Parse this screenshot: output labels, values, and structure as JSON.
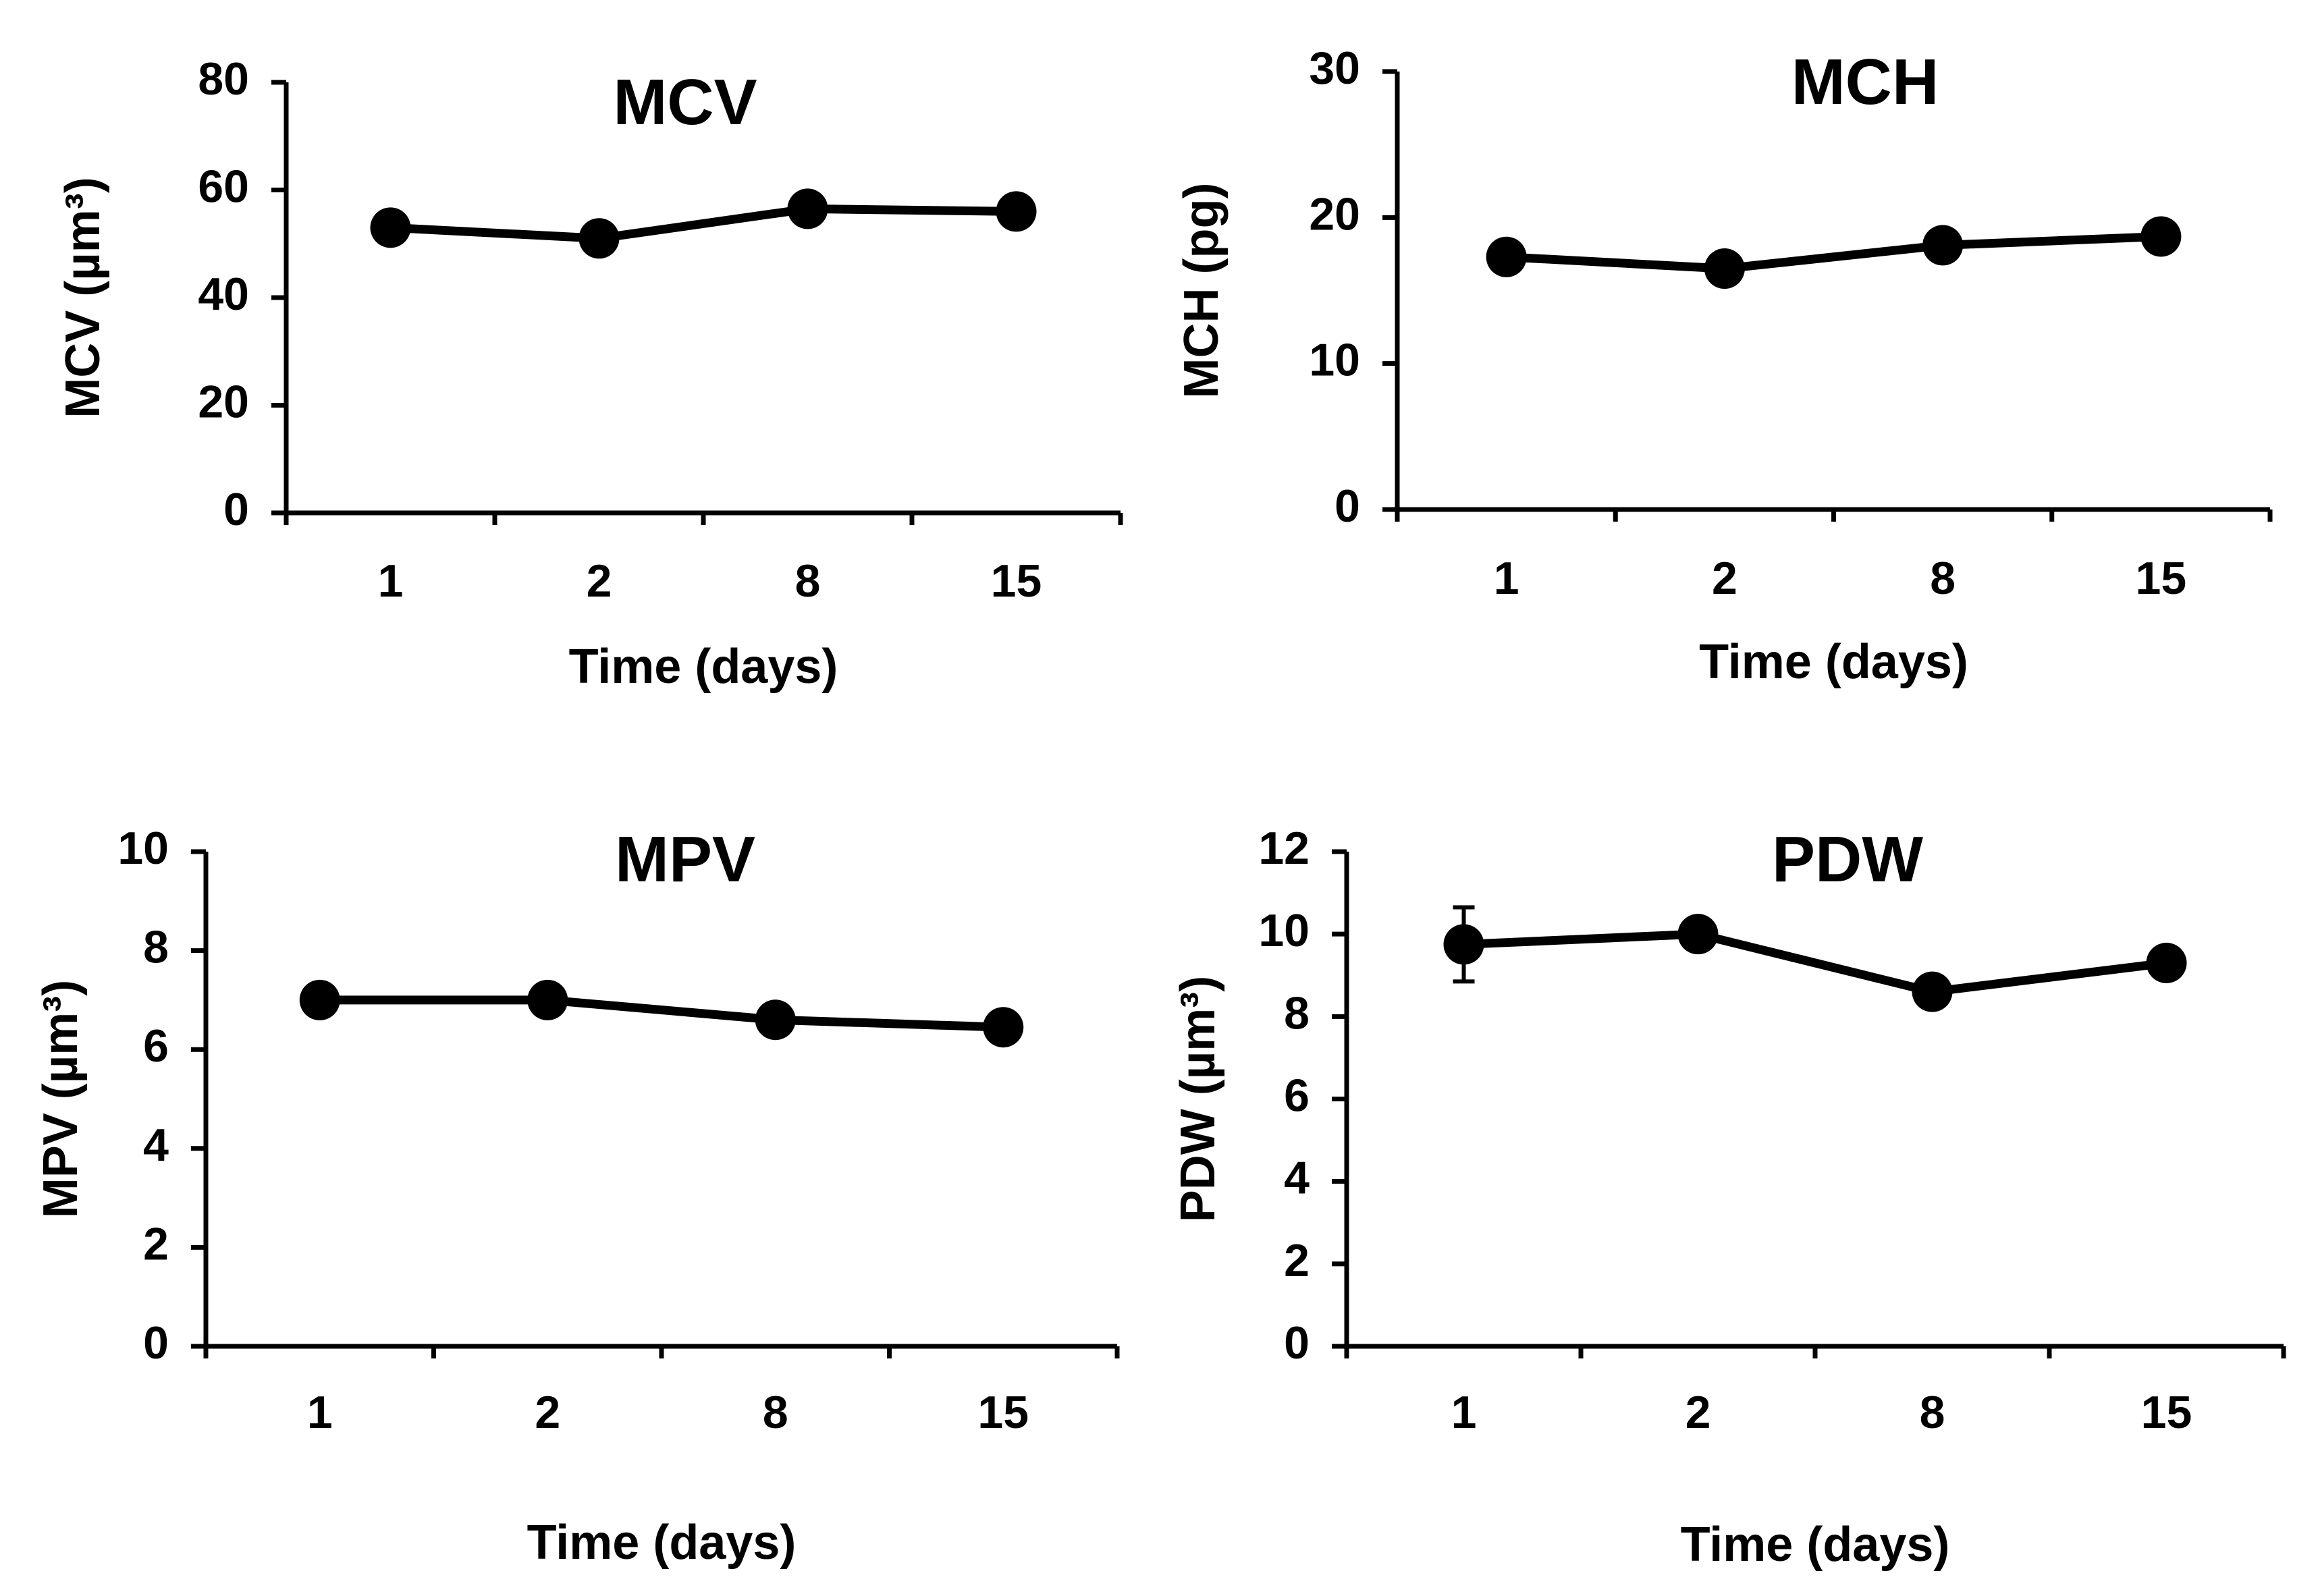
{
  "chart_data": [
    {
      "type": "line",
      "title": "MCV",
      "xlabel": "Time (days)",
      "ylabel": "MCV (µm³)",
      "categories": [
        "1",
        "2",
        "8",
        "15"
      ],
      "values": [
        53,
        51,
        56.5,
        56
      ],
      "errors": [
        0,
        0,
        0,
        0
      ],
      "ylim": [
        0,
        80
      ],
      "yticks": [
        "0",
        "20",
        "40",
        "60",
        "80"
      ],
      "grid": false,
      "color": "#000000"
    },
    {
      "type": "line",
      "title": "MCH",
      "xlabel": "Time (days)",
      "ylabel": "MCH (pg)",
      "categories": [
        "1",
        "2",
        "8",
        "15"
      ],
      "values": [
        17.3,
        16.5,
        18.1,
        18.7
      ],
      "errors": [
        0,
        0,
        0,
        0
      ],
      "ylim": [
        0,
        30
      ],
      "yticks": [
        "0",
        "10",
        "20",
        "30"
      ],
      "grid": false,
      "color": "#000000"
    },
    {
      "type": "line",
      "title": "MPV",
      "xlabel": "Time (days)",
      "ylabel": "MPV (µm³)",
      "categories": [
        "1",
        "2",
        "8",
        "15"
      ],
      "values": [
        7.0,
        7.0,
        6.6,
        6.45
      ],
      "errors": [
        0,
        0,
        0,
        0
      ],
      "ylim": [
        0,
        10
      ],
      "yticks": [
        "0",
        "2",
        "4",
        "6",
        "8",
        "10"
      ],
      "grid": false,
      "color": "#000000"
    },
    {
      "type": "line",
      "title": "PDW",
      "xlabel": "Time (days)",
      "ylabel": "PDW (µm³)",
      "categories": [
        "1",
        "2",
        "8",
        "15"
      ],
      "values": [
        9.75,
        10.0,
        8.6,
        9.3
      ],
      "errors": [
        0.9,
        0,
        0,
        0
      ],
      "ylim": [
        0,
        12
      ],
      "yticks": [
        "0",
        "2",
        "4",
        "6",
        "8",
        "10",
        "12"
      ],
      "grid": false,
      "color": "#000000"
    }
  ]
}
